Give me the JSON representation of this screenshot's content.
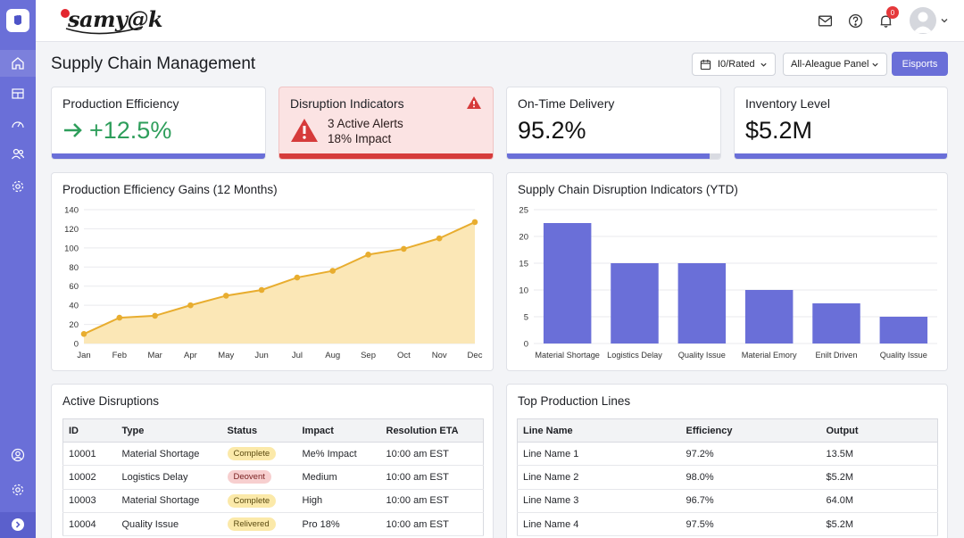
{
  "brand": {
    "name": "samy@k"
  },
  "header": {
    "title": "Supply Chain Management"
  },
  "toolbar": {
    "date_filter": "I0/Rated",
    "panel_filter": "All-Aleague Panel",
    "export_label": "Eisports"
  },
  "notifications": {
    "count": "0"
  },
  "kpis": {
    "efficiency": {
      "title": "Production Efficiency",
      "value": "+12.5%"
    },
    "disruption": {
      "title": "Disruption Indicators",
      "alerts": "3 Active Alerts",
      "impact": "18% Impact"
    },
    "delivery": {
      "title": "On-Time Delivery",
      "value": "95.2%",
      "progress": 0.95
    },
    "inventory": {
      "title": "Inventory Level",
      "value": "$5.2M"
    }
  },
  "line_panel": {
    "title": "Production Efficiency Gains (12 Months)"
  },
  "bar_panel": {
    "title": "Supply Chain Disruption Indicators (YTD)"
  },
  "chart_data": [
    {
      "type": "area",
      "title": "Production Efficiency Gains (12 Months)",
      "categories": [
        "Jan",
        "Feb",
        "Mar",
        "Apr",
        "May",
        "Jun",
        "Jul",
        "Aug",
        "Sep",
        "Oct",
        "Nov",
        "Dec"
      ],
      "values": [
        10,
        27,
        29,
        40,
        50,
        56,
        69,
        76,
        93,
        99,
        110,
        127
      ],
      "ylim": [
        0,
        140
      ],
      "yticks": [
        0,
        20,
        40,
        60,
        80,
        100,
        120,
        140
      ],
      "grid": true,
      "color": "#e8ad2f",
      "fill": "#fbe7b6"
    },
    {
      "type": "bar",
      "title": "Supply Chain Disruption Indicators (YTD)",
      "categories": [
        "Material Shortage",
        "Logistics Delay",
        "Quality Issue",
        "Material Emory",
        "Enilt Driven",
        "Quality Issue"
      ],
      "values": [
        22.5,
        15,
        15,
        10,
        7.5,
        5
      ],
      "ylim": [
        0,
        25
      ],
      "yticks": [
        0,
        5,
        10,
        15,
        20,
        25
      ],
      "grid": true,
      "color": "#6a6fd8"
    }
  ],
  "disruptions": {
    "title": "Active Disruptions",
    "columns": [
      "ID",
      "Type",
      "Status",
      "Impact",
      "Resolution ETA"
    ],
    "rows": [
      {
        "id": "10001",
        "type": "Material Shortage",
        "status": "Complete",
        "status_color": "yellow",
        "impact": "Me% Impact",
        "eta": "10:00 am EST"
      },
      {
        "id": "10002",
        "type": "Logistics Delay",
        "status": "Deovent",
        "status_color": "red",
        "impact": "Medium",
        "eta": "10:00 am EST"
      },
      {
        "id": "10003",
        "type": "Material Shortage",
        "status": "Complete",
        "status_color": "yellow",
        "impact": "High",
        "eta": "10:00 am EST"
      },
      {
        "id": "10004",
        "type": "Quality Issue",
        "status": "Relivered",
        "status_color": "yellow",
        "impact": "Pro 18%",
        "eta": "10:00 am EST"
      }
    ]
  },
  "lines": {
    "title": "Top Production Lines",
    "columns": [
      "Line Name",
      "Efficiency",
      "Output"
    ],
    "rows": [
      {
        "name": "Line Name 1",
        "efficiency": "97.2%",
        "output": "13.5M"
      },
      {
        "name": "Line Name 2",
        "efficiency": "98.0%",
        "output": "$5.2M"
      },
      {
        "name": "Line Name 3",
        "efficiency": "96.7%",
        "output": "64.0M"
      },
      {
        "name": "Line Name 4",
        "efficiency": "97.5%",
        "output": "$5.2M"
      }
    ]
  }
}
